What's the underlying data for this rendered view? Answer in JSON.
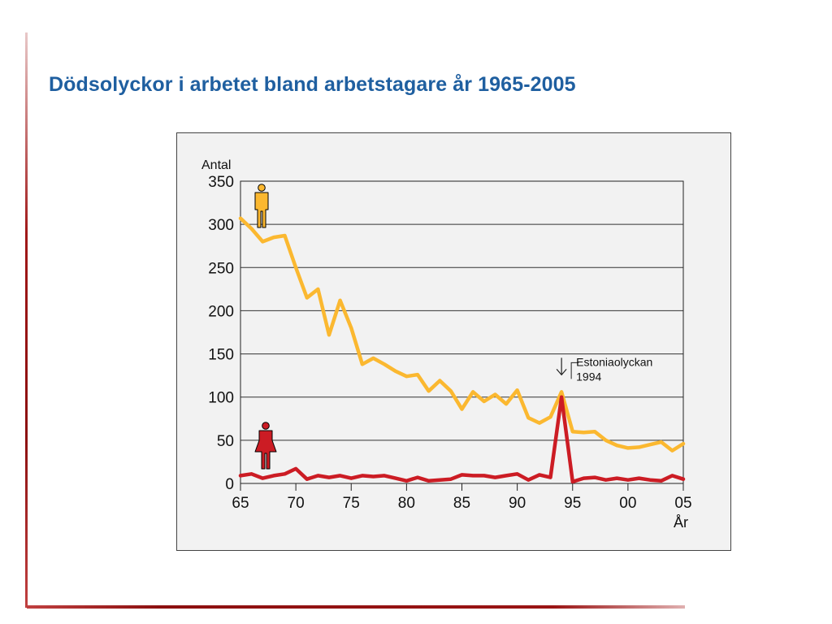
{
  "title": "Dödsolyckor i arbetet bland arbetstagare år 1965-2005",
  "chart_data": {
    "type": "line",
    "ylabel": "Antal",
    "xlabel": "År",
    "ylim": [
      0,
      350
    ],
    "yticks": [
      0,
      50,
      100,
      150,
      200,
      250,
      300,
      350
    ],
    "xlim": [
      1965,
      2005
    ],
    "xticks": [
      1965,
      1970,
      1975,
      1980,
      1985,
      1990,
      1995,
      2000,
      2005
    ],
    "xtick_labels": [
      "65",
      "70",
      "75",
      "80",
      "85",
      "90",
      "95",
      "00",
      "05"
    ],
    "grid": "horizontal",
    "x": [
      1965,
      1966,
      1967,
      1968,
      1969,
      1970,
      1971,
      1972,
      1973,
      1974,
      1975,
      1976,
      1977,
      1978,
      1979,
      1980,
      1981,
      1982,
      1983,
      1984,
      1985,
      1986,
      1987,
      1988,
      1989,
      1990,
      1991,
      1992,
      1993,
      1994,
      1995,
      1996,
      1997,
      1998,
      1999,
      2000,
      2001,
      2002,
      2003,
      2004,
      2005
    ],
    "series": [
      {
        "icon": "man-icon",
        "color": "#fbb830",
        "values": [
          307,
          295,
          280,
          285,
          287,
          250,
          215,
          225,
          172,
          212,
          180,
          138,
          145,
          138,
          130,
          124,
          126,
          107,
          119,
          107,
          86,
          106,
          95,
          103,
          92,
          108,
          76,
          70,
          77,
          106,
          60,
          59,
          60,
          50,
          44,
          41,
          42,
          45,
          48,
          38,
          46
        ]
      },
      {
        "icon": "woman-icon",
        "color": "#cc1c24",
        "values": [
          9,
          11,
          6,
          9,
          11,
          17,
          5,
          9,
          7,
          9,
          6,
          9,
          8,
          9,
          6,
          3,
          7,
          3,
          4,
          5,
          10,
          9,
          9,
          7,
          9,
          11,
          4,
          10,
          7,
          100,
          2,
          6,
          7,
          4,
          6,
          4,
          6,
          4,
          3,
          9,
          5
        ]
      }
    ],
    "annotations": [
      {
        "text_line1": "Estoniaolyckan",
        "text_line2": "1994",
        "x": 1994,
        "y": 106
      }
    ]
  }
}
